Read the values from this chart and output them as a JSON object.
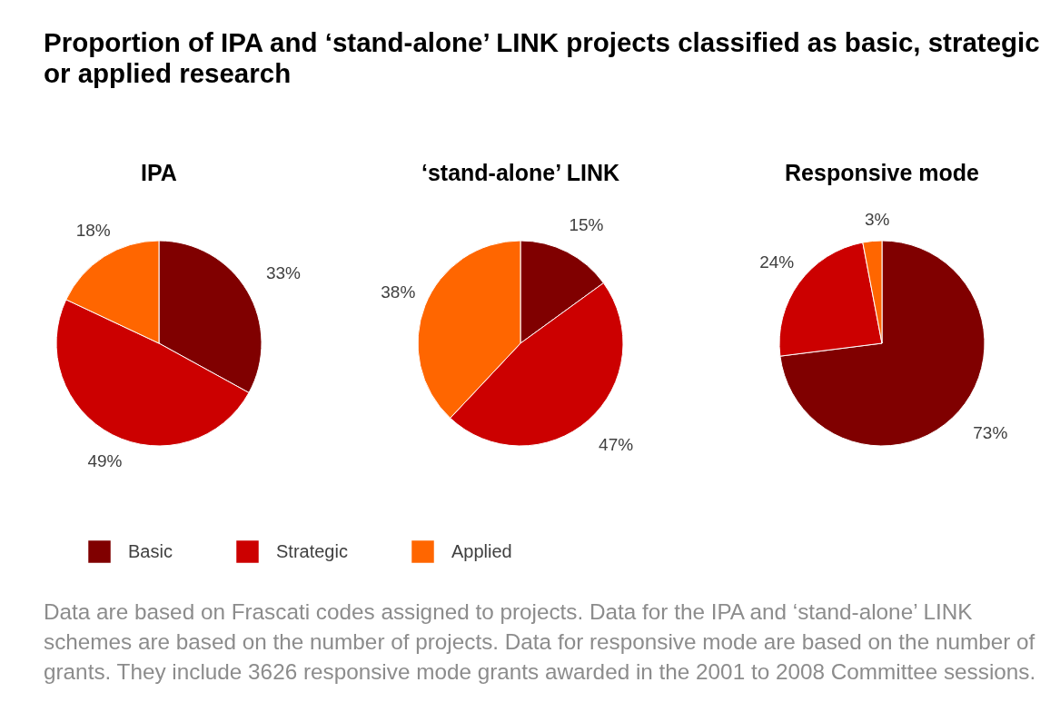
{
  "chart_data": {
    "type": "pie",
    "title": "Proportion of IPA and ‘stand-alone’ LINK projects classified as basic, strategic or applied research",
    "categories": [
      "Basic",
      "Strategic",
      "Applied"
    ],
    "colors": [
      "#800000",
      "#cc0000",
      "#ff6600"
    ],
    "series": [
      {
        "name": "IPA",
        "values": [
          33,
          49,
          18
        ],
        "value_labels": [
          "33%",
          "49%",
          "18%"
        ]
      },
      {
        "name": "‘stand-alone’ LINK",
        "values": [
          15,
          47,
          38
        ],
        "value_labels": [
          "15%",
          "47%",
          "38%"
        ]
      },
      {
        "name": "Responsive mode",
        "values": [
          73,
          24,
          3
        ],
        "value_labels": [
          "73%",
          "24%",
          "3%"
        ]
      }
    ],
    "legend": "bottom",
    "annotations": [
      "Data are based on Frascati codes assigned to projects. Data for the IPA and ‘stand-alone’ LINK schemes are based on the number of projects. Data for responsive mode are based on the number of grants. They include 3626 responsive mode grants awarded in the 2001 to 2008 Committee sessions."
    ]
  }
}
